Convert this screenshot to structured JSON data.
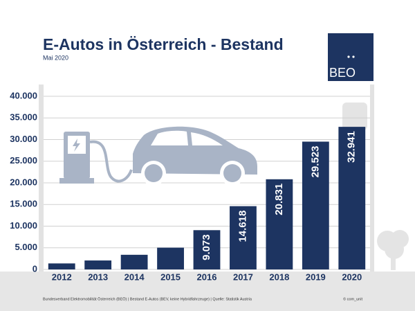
{
  "chart_data": {
    "type": "bar",
    "title": "E-Autos in Österreich - Bestand",
    "subtitle": "Mai 2020",
    "logo": "BEO",
    "source": "Bundesverband Elektromobilität Österreich (BEÖ) | Bestand E-Autos (BEV, keine Hybridfahrzeuge) | Quelle: Statistik Austria",
    "credit": "© com_unit",
    "categories": [
      "2012",
      "2013",
      "2014",
      "2015",
      "2016",
      "2017",
      "2018",
      "2019",
      "2020"
    ],
    "values": [
      1389,
      2070,
      3386,
      5032,
      9073,
      14618,
      20831,
      29523,
      32941
    ],
    "value_labels": [
      null,
      null,
      null,
      null,
      "9.073",
      "14.618",
      "20.831",
      "29.523",
      "32.941"
    ],
    "color": "#1d3461",
    "ylim": [
      0,
      40000
    ],
    "yticks": [
      0,
      {
        "value": 5000,
        "label": "5.000"
      },
      {
        "value": 10000,
        "label": "10.000"
      },
      {
        "value": 15000,
        "label": "15.000"
      },
      {
        "value": 20000,
        "label": "20.000"
      },
      {
        "value": 25000,
        "label": "25.000"
      },
      {
        "value": 30000,
        "label": "30.000"
      },
      {
        "value": 35000,
        "label": "35.000"
      },
      {
        "value": 40000,
        "label": "40.000"
      }
    ],
    "grid": true
  }
}
